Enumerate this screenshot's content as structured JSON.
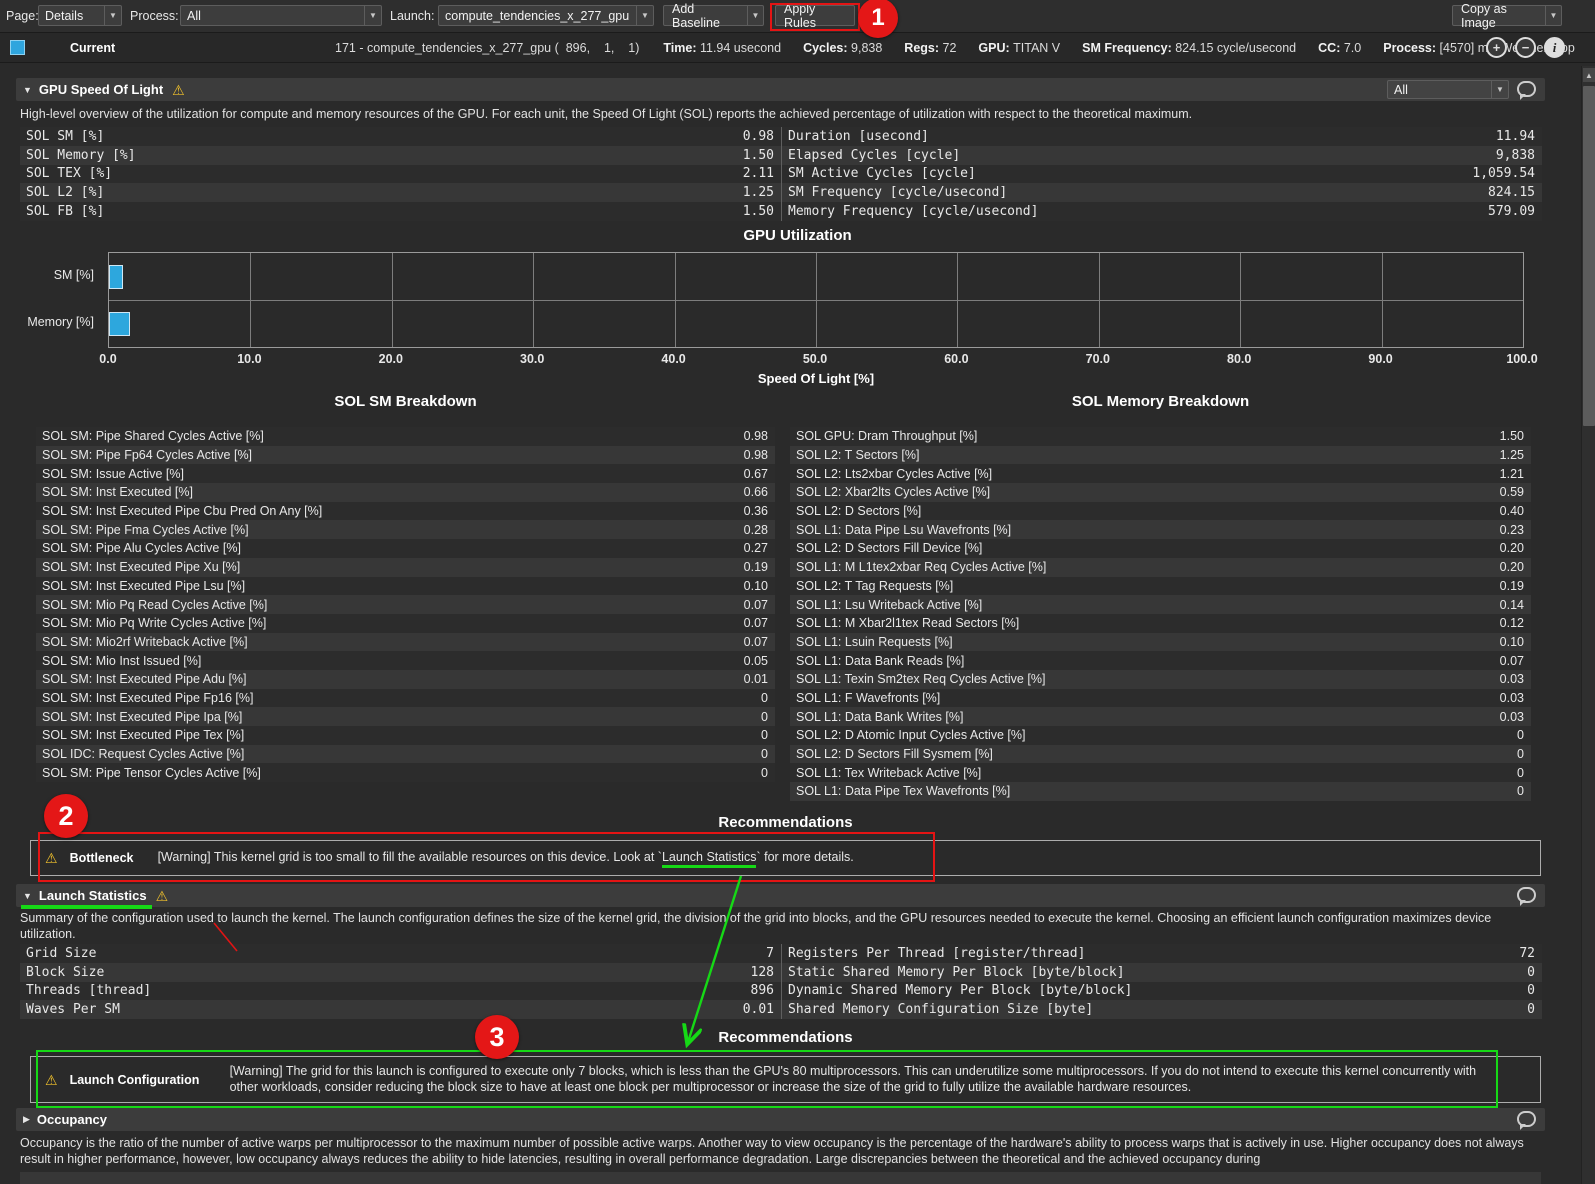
{
  "toolbar": {
    "page_label": "Page:",
    "page_value": "Details",
    "process_label": "Process:",
    "process_value": "All",
    "launch_label": "Launch:",
    "launch_value": "compute_tendencies_x_277_gpu",
    "add_baseline": "Add Baseline",
    "apply_rules": "Apply Rules",
    "copy_as_image": "Copy as Image"
  },
  "report_header": {
    "current_label": "Current",
    "kernel": "171 - compute_tendencies_x_277_gpu (  896,    1,    1)",
    "fields": [
      {
        "label": "Time:",
        "value": "11.94 usecond"
      },
      {
        "label": "Cycles:",
        "value": "9,838"
      },
      {
        "label": "Regs:",
        "value": "72"
      },
      {
        "label": "GPU:",
        "value": "TITAN V"
      },
      {
        "label": "SM Frequency:",
        "value": "824.15 cycle/usecond"
      },
      {
        "label": "CC:",
        "value": "7.0"
      },
      {
        "label": "Process:",
        "value": "[4570] miniWeather_cpp"
      }
    ]
  },
  "annotations": {
    "badge_1": "1",
    "badge_2": "2",
    "badge_3": "3"
  },
  "sol_section": {
    "title": "GPU Speed Of Light",
    "filter_value": "All",
    "description": "High-level overview of the utilization for compute and memory resources of the GPU. For each unit, the Speed Of Light (SOL) reports the achieved percentage of utilization with respect to the theoretical maximum.",
    "table_left": [
      {
        "label": "SOL SM [%]",
        "value": "0.98"
      },
      {
        "label": "SOL Memory [%]",
        "value": "1.50"
      },
      {
        "label": "SOL TEX [%]",
        "value": "2.11"
      },
      {
        "label": "SOL L2 [%]",
        "value": "1.25"
      },
      {
        "label": "SOL FB [%]",
        "value": "1.50"
      }
    ],
    "table_right": [
      {
        "label": "Duration [usecond]",
        "value": "11.94"
      },
      {
        "label": "Elapsed Cycles [cycle]",
        "value": "9,838"
      },
      {
        "label": "SM Active Cycles [cycle]",
        "value": "1,059.54"
      },
      {
        "label": "SM Frequency [cycle/usecond]",
        "value": "824.15"
      },
      {
        "label": "Memory Frequency [cycle/usecond]",
        "value": "579.09"
      }
    ]
  },
  "chart_data": {
    "type": "bar",
    "orientation": "horizontal",
    "title": "GPU Utilization",
    "categories": [
      "SM [%]",
      "Memory [%]"
    ],
    "values": [
      0.98,
      1.5
    ],
    "xlabel": "Speed Of Light [%]",
    "xlim": [
      0,
      100
    ],
    "xticks": [
      0,
      10,
      20,
      30,
      40,
      50,
      60,
      70,
      80,
      90,
      100
    ],
    "grid": true,
    "legend": false,
    "bar_color": "#2da7dd"
  },
  "sm_breakdown": {
    "title": "SOL SM Breakdown",
    "rows": [
      {
        "label": "SOL SM: Pipe Shared Cycles Active [%]",
        "value": "0.98"
      },
      {
        "label": "SOL SM: Pipe Fp64 Cycles Active [%]",
        "value": "0.98"
      },
      {
        "label": "SOL SM: Issue Active [%]",
        "value": "0.67"
      },
      {
        "label": "SOL SM: Inst Executed [%]",
        "value": "0.66"
      },
      {
        "label": "SOL SM: Inst Executed Pipe Cbu Pred On Any [%]",
        "value": "0.36"
      },
      {
        "label": "SOL SM: Pipe Fma Cycles Active [%]",
        "value": "0.28"
      },
      {
        "label": "SOL SM: Pipe Alu Cycles Active [%]",
        "value": "0.27"
      },
      {
        "label": "SOL SM: Inst Executed Pipe Xu [%]",
        "value": "0.19"
      },
      {
        "label": "SOL SM: Inst Executed Pipe Lsu [%]",
        "value": "0.10"
      },
      {
        "label": "SOL SM: Mio Pq Read Cycles Active [%]",
        "value": "0.07"
      },
      {
        "label": "SOL SM: Mio Pq Write Cycles Active [%]",
        "value": "0.07"
      },
      {
        "label": "SOL SM: Mio2rf Writeback Active [%]",
        "value": "0.07"
      },
      {
        "label": "SOL SM: Mio Inst Issued [%]",
        "value": "0.05"
      },
      {
        "label": "SOL SM: Inst Executed Pipe Adu [%]",
        "value": "0.01"
      },
      {
        "label": "SOL SM: Inst Executed Pipe Fp16 [%]",
        "value": "0"
      },
      {
        "label": "SOL SM: Inst Executed Pipe Ipa [%]",
        "value": "0"
      },
      {
        "label": "SOL SM: Inst Executed Pipe Tex [%]",
        "value": "0"
      },
      {
        "label": "SOL IDC: Request Cycles Active [%]",
        "value": "0"
      },
      {
        "label": "SOL SM: Pipe Tensor Cycles Active [%]",
        "value": "0"
      }
    ]
  },
  "memory_breakdown": {
    "title": "SOL Memory Breakdown",
    "rows": [
      {
        "label": "SOL GPU: Dram Throughput [%]",
        "value": "1.50"
      },
      {
        "label": "SOL L2: T Sectors [%]",
        "value": "1.25"
      },
      {
        "label": "SOL L2: Lts2xbar Cycles Active [%]",
        "value": "1.21"
      },
      {
        "label": "SOL L2: Xbar2lts Cycles Active [%]",
        "value": "0.59"
      },
      {
        "label": "SOL L2: D Sectors [%]",
        "value": "0.40"
      },
      {
        "label": "SOL L1: Data Pipe Lsu Wavefronts [%]",
        "value": "0.23"
      },
      {
        "label": "SOL L2: D Sectors Fill Device [%]",
        "value": "0.20"
      },
      {
        "label": "SOL L1: M L1tex2xbar Req Cycles Active [%]",
        "value": "0.20"
      },
      {
        "label": "SOL L2: T Tag Requests [%]",
        "value": "0.19"
      },
      {
        "label": "SOL L1: Lsu Writeback Active [%]",
        "value": "0.14"
      },
      {
        "label": "SOL L1: M Xbar2l1tex Read Sectors [%]",
        "value": "0.12"
      },
      {
        "label": "SOL L1: Lsuin Requests [%]",
        "value": "0.10"
      },
      {
        "label": "SOL L1: Data Bank Reads [%]",
        "value": "0.07"
      },
      {
        "label": "SOL L1: Texin Sm2tex Req Cycles Active [%]",
        "value": "0.03"
      },
      {
        "label": "SOL L1: F Wavefronts [%]",
        "value": "0.03"
      },
      {
        "label": "SOL L1: Data Bank Writes [%]",
        "value": "0.03"
      },
      {
        "label": "SOL L2: D Atomic Input Cycles Active [%]",
        "value": "0"
      },
      {
        "label": "SOL L2: D Sectors Fill Sysmem [%]",
        "value": "0"
      },
      {
        "label": "SOL L1: Tex Writeback Active [%]",
        "value": "0"
      },
      {
        "label": "SOL L1: Data Pipe Tex Wavefronts [%]",
        "value": "0"
      }
    ]
  },
  "recommendations1": {
    "title": "Recommendations",
    "rule": "Bottleneck",
    "text_pre": "[Warning] This kernel grid is too small to fill the available resources on this device. Look at `",
    "link": "Launch Statistics",
    "text_post": "` for more details."
  },
  "launch_section": {
    "title": "Launch Statistics",
    "description": "Summary of the configuration used to launch the kernel. The launch configuration defines the size of the kernel grid, the division of the grid into blocks, and the GPU resources needed to execute the kernel. Choosing an efficient launch configuration maximizes device utilization.",
    "table_left": [
      {
        "label": "Grid Size",
        "value": "7"
      },
      {
        "label": "Block Size",
        "value": "128"
      },
      {
        "label": "Threads [thread]",
        "value": "896"
      },
      {
        "label": "Waves Per SM",
        "value": "0.01"
      }
    ],
    "table_right": [
      {
        "label": "Registers Per Thread [register/thread]",
        "value": "72"
      },
      {
        "label": "Static Shared Memory Per Block [byte/block]",
        "value": "0"
      },
      {
        "label": "Dynamic Shared Memory Per Block [byte/block]",
        "value": "0"
      },
      {
        "label": "Shared Memory Configuration Size [byte]",
        "value": "0"
      }
    ]
  },
  "recommendations2": {
    "title": "Recommendations",
    "rule": "Launch Configuration",
    "text": "[Warning] The grid for this launch is configured to execute only 7 blocks, which is less than the GPU's 80 multiprocessors. This can underutilize some multiprocessors. If you do not intend to execute this kernel concurrently with other workloads, consider reducing the block size to have at least one block per multiprocessor or increase the size of the grid to fully utilize the available hardware resources."
  },
  "occupancy_section": {
    "title": "Occupancy",
    "description": "Occupancy is the ratio of the number of active warps per multiprocessor to the maximum number of possible active warps. Another way to view occupancy is the percentage of the hardware's ability to process warps that is actively in use. Higher occupancy does not always result in higher performance, however, low occupancy always reduces the ability to hide latencies, resulting in overall performance degradation. Large discrepancies between the theoretical and the achieved occupancy during"
  }
}
